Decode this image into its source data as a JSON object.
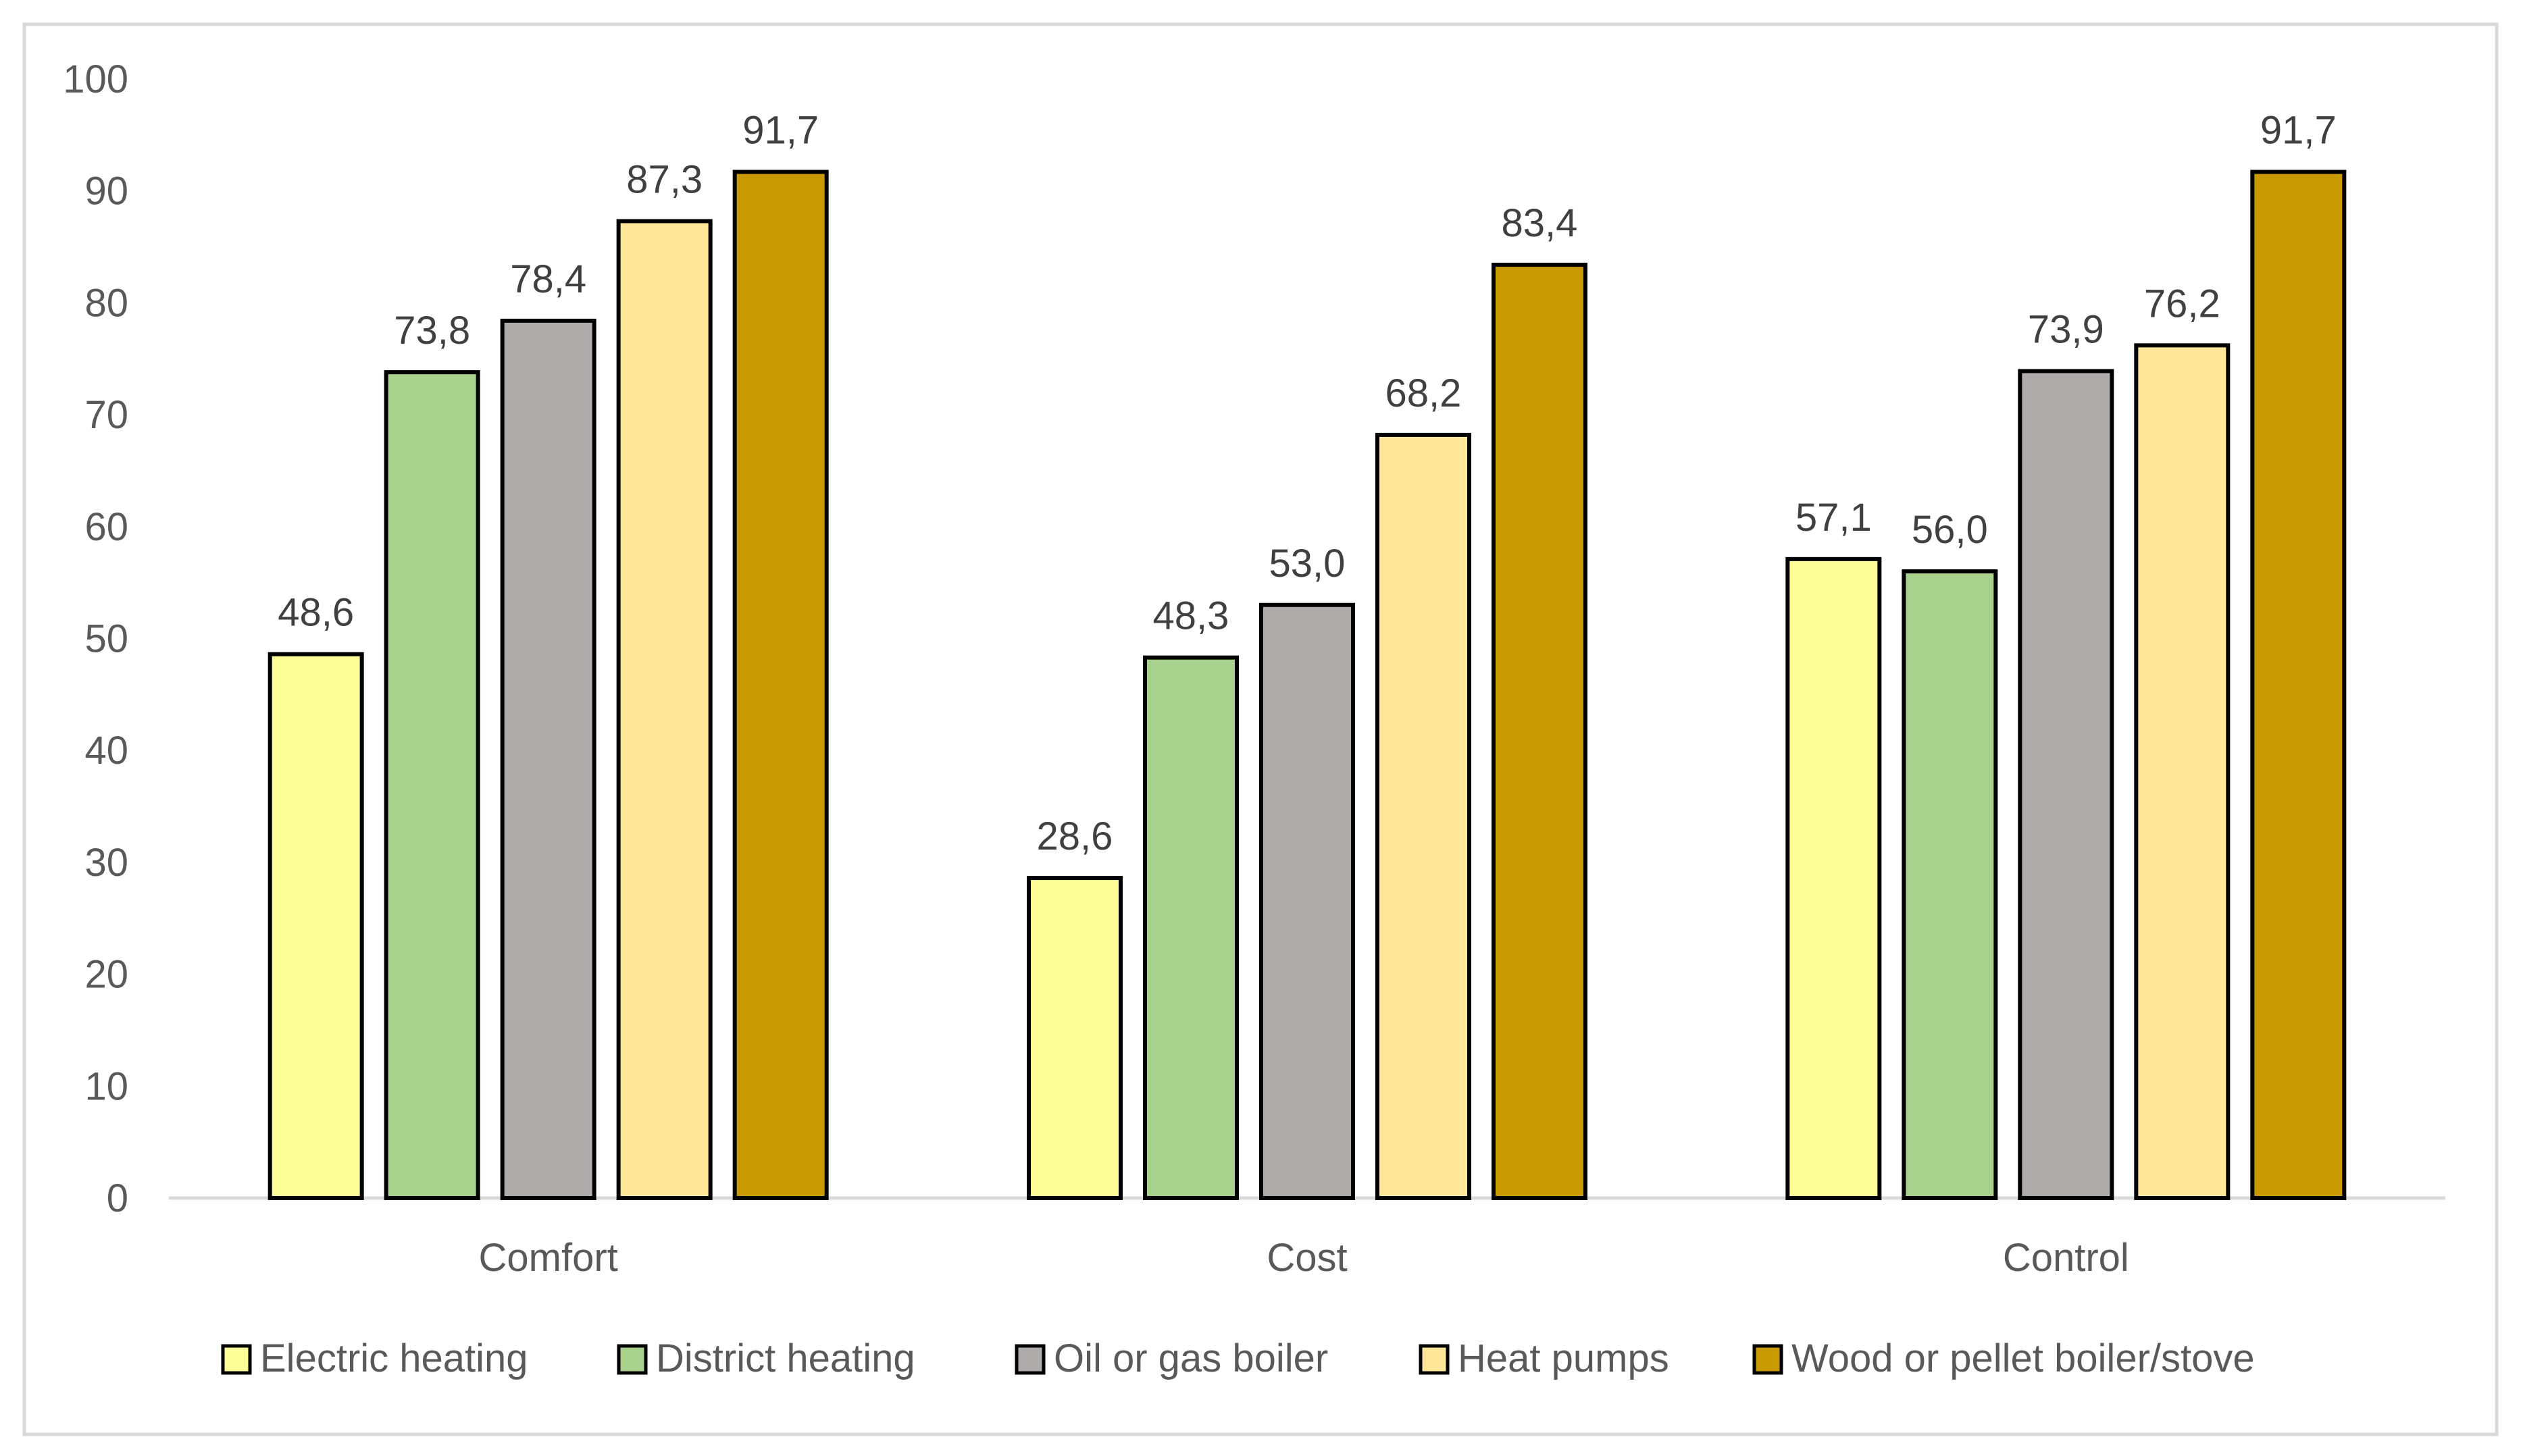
{
  "chart_data": {
    "type": "bar",
    "title": "",
    "xlabel": "",
    "ylabel": "",
    "ylim": [
      0,
      100
    ],
    "y_ticks": [
      "0",
      "10",
      "20",
      "30",
      "40",
      "50",
      "60",
      "70",
      "80",
      "90",
      "100"
    ],
    "categories": [
      "Comfort",
      "Cost",
      "Control"
    ],
    "series": [
      {
        "name": "Electric heating",
        "color": "#FFFF99",
        "values": [
          48.6,
          28.6,
          57.1
        ],
        "labels": [
          "48,6",
          "28,6",
          "57,1"
        ]
      },
      {
        "name": "District heating",
        "color": "#A9D18E",
        "values": [
          73.8,
          48.3,
          56.0
        ],
        "labels": [
          "73,8",
          "48,3",
          "56,0"
        ]
      },
      {
        "name": "Oil or gas boiler",
        "color": "#AFABAB",
        "values": [
          78.4,
          53.0,
          73.9
        ],
        "labels": [
          "78,4",
          "53,0",
          "73,9"
        ]
      },
      {
        "name": "Heat pumps",
        "color": "#FFE699",
        "values": [
          87.3,
          68.2,
          76.2
        ],
        "labels": [
          "87,3",
          "68,2",
          "76,2"
        ]
      },
      {
        "name": "Wood or pellet boiler/stove",
        "color": "#C99A00",
        "values": [
          91.7,
          83.4,
          91.7
        ],
        "labels": [
          "91,7",
          "83,4",
          "91,7"
        ]
      }
    ],
    "grid": false,
    "legend_position": "bottom"
  }
}
